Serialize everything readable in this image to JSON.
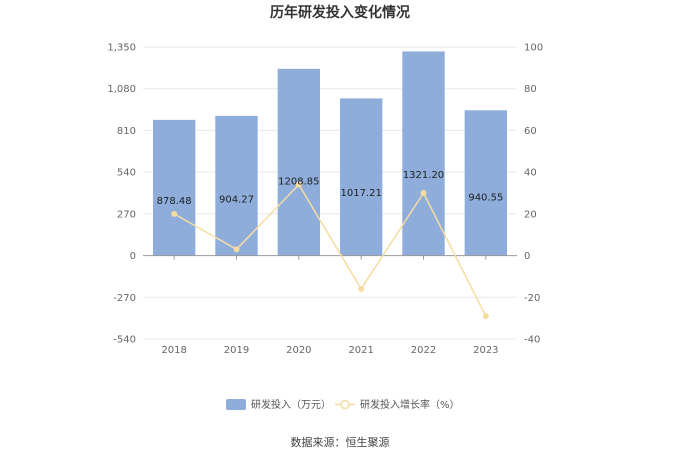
{
  "chart_data": {
    "type": "bar",
    "title": "历年研发投入变化情况",
    "categories": [
      "2018",
      "2019",
      "2020",
      "2021",
      "2022",
      "2023"
    ],
    "series": [
      {
        "name": "研发投入（万元）",
        "type": "bar",
        "axis": "left",
        "values": [
          878.48,
          904.27,
          1208.85,
          1017.21,
          1321.2,
          940.55
        ],
        "value_labels": [
          "878.48",
          "904.27",
          "1208.85",
          "1017.21",
          "1321.20",
          "940.55"
        ],
        "color": "#8eadda"
      },
      {
        "name": "研发投入增长率（%）",
        "type": "line",
        "axis": "right",
        "values": [
          20,
          3,
          34,
          -16,
          30,
          -29
        ],
        "color": "#f5dca3"
      }
    ],
    "y_left": {
      "ticks": [
        "1,350",
        "1,080",
        "810",
        "540",
        "270",
        "0",
        "-270",
        "-540"
      ],
      "lim": [
        -540,
        1350
      ]
    },
    "y_right": {
      "ticks": [
        "100",
        "80",
        "60",
        "40",
        "20",
        "0",
        "-20",
        "-40"
      ],
      "lim": [
        -40,
        100
      ]
    },
    "grid": true,
    "legend_position": "bottom-center"
  },
  "source_text": "数据来源：恒生聚源"
}
